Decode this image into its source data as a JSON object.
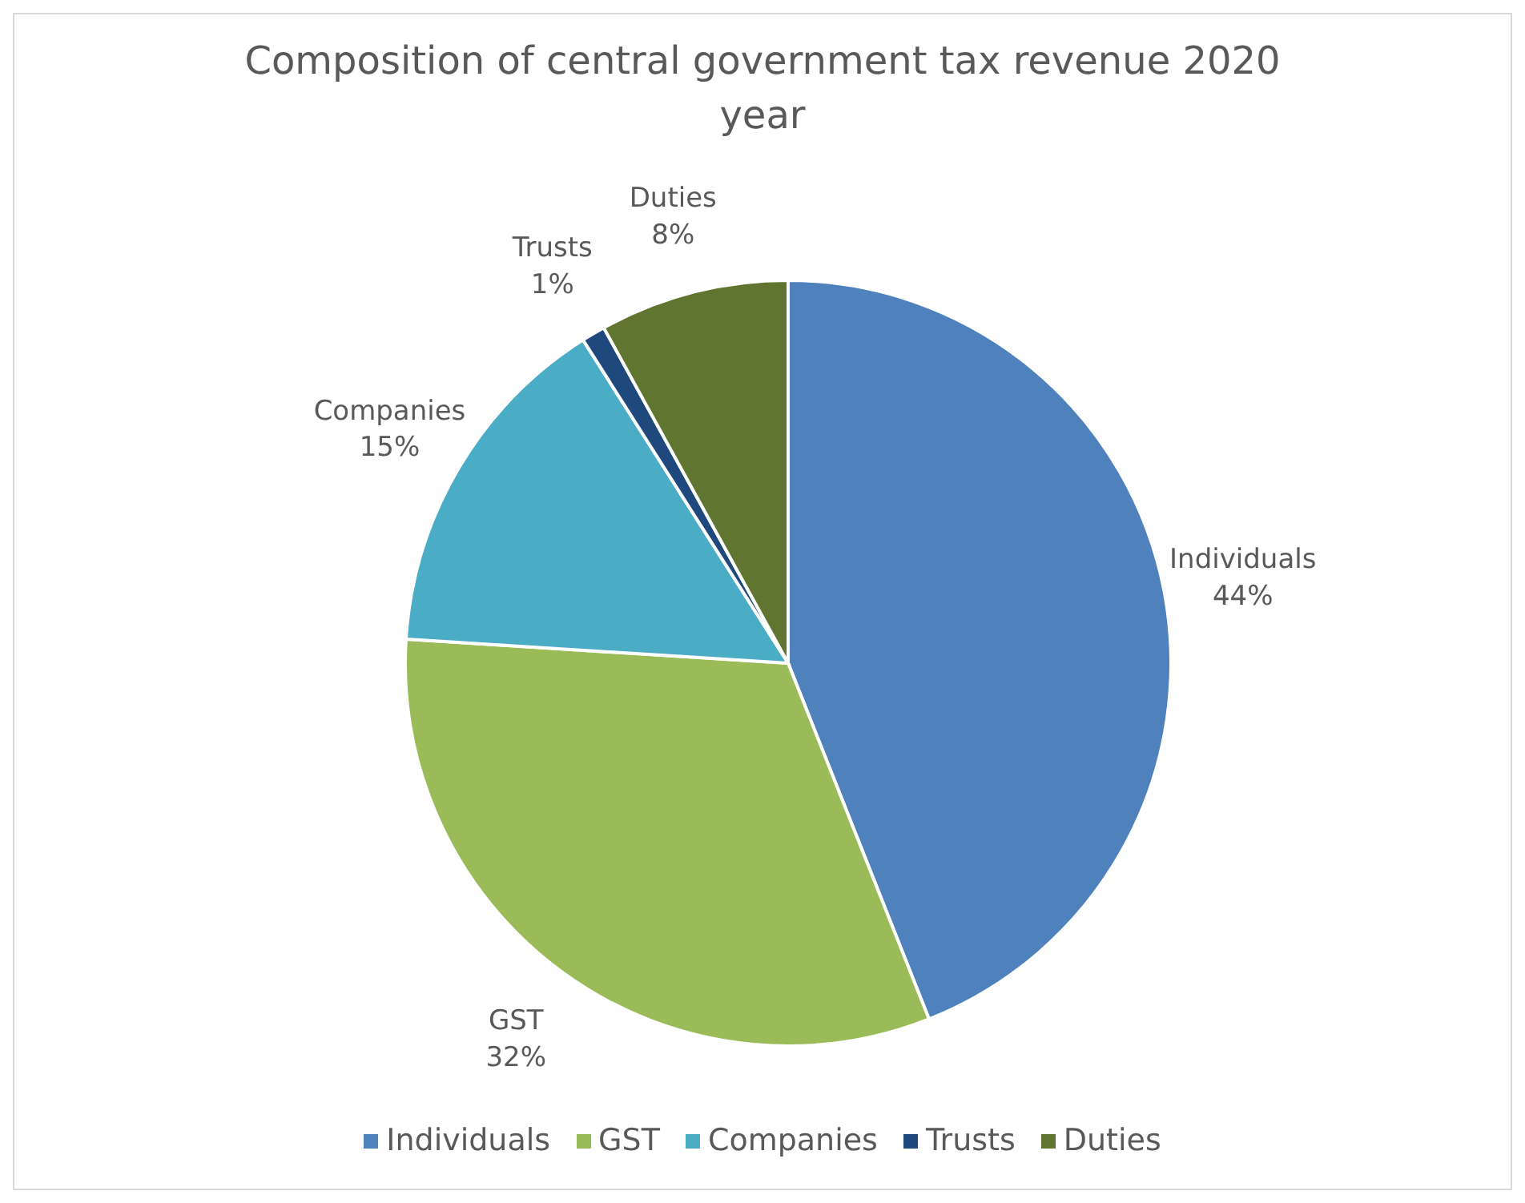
{
  "chart_data": {
    "type": "pie",
    "title": "Composition of central government tax revenue 2020 year",
    "categories": [
      "Individuals",
      "GST",
      "Companies",
      "Trusts",
      "Duties"
    ],
    "values": [
      44,
      32,
      15,
      1,
      8
    ],
    "colors": [
      "#4f81bd",
      "#9bbb59",
      "#4bacc6",
      "#1f497d",
      "#5f7530"
    ],
    "value_labels": [
      "44%",
      "32%",
      "15%",
      "1%",
      "8%"
    ],
    "legend": "bottom"
  }
}
